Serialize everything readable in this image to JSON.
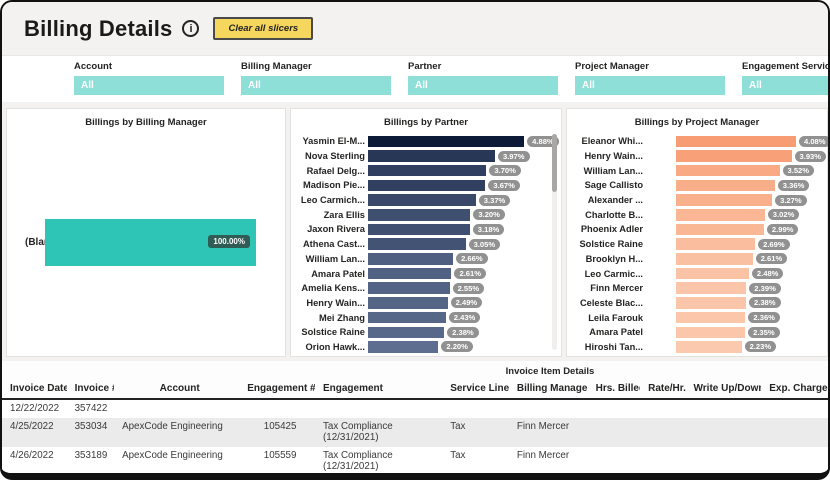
{
  "header": {
    "title": "Billing Details",
    "info_glyph": "i",
    "clear_button": "Clear all slicers"
  },
  "slicers": [
    {
      "label": "Account",
      "value": "All"
    },
    {
      "label": "Billing Manager",
      "value": "All"
    },
    {
      "label": "Partner",
      "value": "All"
    },
    {
      "label": "Project Manager",
      "value": "All"
    },
    {
      "label": "Engagement Service L",
      "value": "All"
    }
  ],
  "chart_data": [
    {
      "type": "bar",
      "orientation": "horizontal",
      "title": "Billings by Billing Manager",
      "categories": [
        "(Blank)"
      ],
      "values": [
        100.0
      ],
      "labels": [
        "100.00%"
      ],
      "xlabel": "",
      "ylabel": "",
      "xlim": [
        0,
        100
      ],
      "grid": false,
      "legend": "none",
      "bar_color": "#2ec5b6",
      "label_bg": "#315b55"
    },
    {
      "type": "bar",
      "orientation": "horizontal",
      "title": "Billings by Partner",
      "categories": [
        "Yasmin El-M...",
        "Nova Sterling",
        "Rafael Delg...",
        "Madison Pie...",
        "Leo Carmich...",
        "Zara Ellis",
        "Jaxon Rivera",
        "Athena Cast...",
        "William Lan...",
        "Amara Patel",
        "Amelia Kens...",
        "Henry Wain...",
        "Mei Zhang",
        "Solstice Raine",
        "Orion Hawk..."
      ],
      "values": [
        4.88,
        3.97,
        3.7,
        3.67,
        3.37,
        3.2,
        3.18,
        3.05,
        2.66,
        2.61,
        2.55,
        2.49,
        2.43,
        2.38,
        2.2
      ],
      "labels": [
        "4.88%",
        "3.97%",
        "3.70%",
        "3.67%",
        "3.37%",
        "3.20%",
        "3.18%",
        "3.05%",
        "2.66%",
        "2.61%",
        "2.55%",
        "2.49%",
        "2.43%",
        "2.38%",
        "2.20%"
      ],
      "xlabel": "",
      "ylabel": "",
      "xlim": [
        0,
        5
      ],
      "grid": false,
      "legend": "none",
      "color_max": "#0c1a38",
      "color_min": "#5d6e90",
      "label_bg": "#919191",
      "scrollbar": true
    },
    {
      "type": "bar",
      "orientation": "horizontal",
      "title": "Billings by Project Manager",
      "categories": [
        "Eleanor Whi...",
        "Henry Wain...",
        "William Lan...",
        "Sage Callisto",
        "Alexander ...",
        "Charlotte B...",
        "Phoenix Adler",
        "Solstice Raine",
        "Brooklyn H...",
        "Leo Carmic...",
        "Finn Mercer",
        "Celeste Blac...",
        "Leila Farouk",
        "Amara Patel",
        "Hiroshi Tan..."
      ],
      "values": [
        4.08,
        3.93,
        3.52,
        3.36,
        3.27,
        3.02,
        2.99,
        2.69,
        2.61,
        2.48,
        2.39,
        2.38,
        2.36,
        2.35,
        2.23
      ],
      "labels": [
        "4.08%",
        "3.93%",
        "3.52%",
        "3.36%",
        "3.27%",
        "3.02%",
        "2.99%",
        "2.69%",
        "2.61%",
        "2.48%",
        "2.39%",
        "2.38%",
        "2.36%",
        "2.35%",
        "2.23%"
      ],
      "xlabel": "",
      "ylabel": "",
      "xlim": [
        0,
        4.5
      ],
      "grid": false,
      "legend": "none",
      "color_max": "#f89c73",
      "color_min": "#fbc9ae",
      "label_bg": "#919191"
    }
  ],
  "table": {
    "title": "Invoice Item Details",
    "columns": [
      "Invoice Date",
      "Invoice #",
      "Account",
      "Engagement #",
      "Engagement",
      "Service Line",
      "Billing Manager",
      "Hrs. Billed",
      "Rate/Hr.",
      "Write Up/Down",
      "Exp. Charges"
    ],
    "rows": [
      [
        "12/22/2022",
        "357422",
        "",
        "",
        "",
        "",
        "",
        "",
        "",
        "",
        ""
      ],
      [
        "4/25/2022",
        "353034",
        "ApexCode Engineering",
        "105425",
        "Tax Compliance (12/31/2021)",
        "Tax",
        "Finn Mercer",
        "",
        "",
        "",
        ""
      ],
      [
        "4/26/2022",
        "353189",
        "ApexCode Engineering",
        "105559",
        "Tax Compliance (12/31/2021)",
        "Tax",
        "Finn Mercer",
        "",
        "",
        "",
        ""
      ]
    ]
  },
  "colors": {
    "slicer_teal": "#8edfd8",
    "accent_yellow": "#f6d75e",
    "blank_bar_teal": "#2ec5b6",
    "blank_label_bg": "#315b55",
    "value_badge_gray": "#919191",
    "partner_dark_navy": "#0c1a38",
    "partner_light_slate": "#5d6e90",
    "pm_dark_salmon": "#f89c73",
    "pm_light_salmon": "#fbc9ae"
  }
}
